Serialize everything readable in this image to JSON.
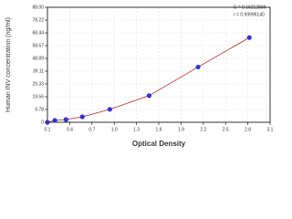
{
  "chart_data": {
    "type": "scatter",
    "x_label": "Optical Density",
    "y_label": "Human INV concentration (ng/ml)",
    "annotations": [
      "S = 0.16212839",
      "r = 0.99996140"
    ],
    "x": [
      0.1,
      0.2,
      0.35,
      0.57,
      0.94,
      1.47,
      2.13,
      2.82
    ],
    "series": [
      {
        "color": "#3333cc",
        "values": [
          0,
          1.4,
          2.1,
          4.2,
          9.9,
          20.4,
          42.3,
          64.8
        ]
      }
    ],
    "fit_line": true,
    "fit_color": "#b22222",
    "xlim": [
      0.1,
      3.1
    ],
    "ylim": [
      0,
      88
    ],
    "xticks": [
      0.1,
      0.4,
      0.7,
      {
        "value": 1,
        "label": "1.0"
      },
      1.3,
      1.6,
      1.9,
      2.2,
      2.5,
      2.8,
      3.1
    ],
    "yticks": [
      0,
      9.78,
      19.56,
      29.33,
      39.11,
      48.89,
      58.67,
      68.44,
      78.22,
      {
        "value": 88,
        "label": "88.00"
      }
    ],
    "grid": true
  }
}
